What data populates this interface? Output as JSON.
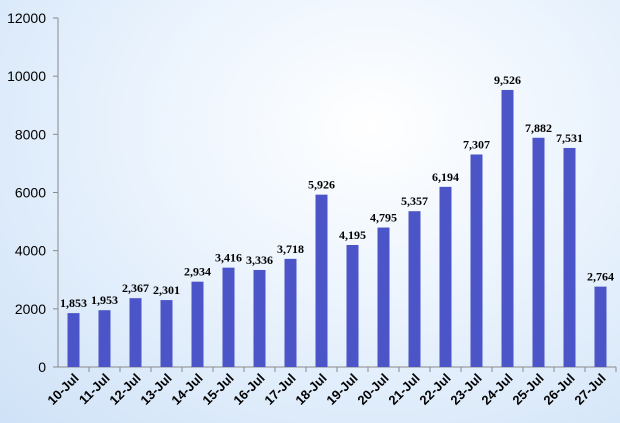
{
  "chart_data": {
    "type": "bar",
    "categories": [
      "10-Jul",
      "11-Jul",
      "12-Jul",
      "13-Jul",
      "14-Jul",
      "15-Jul",
      "16-Jul",
      "17-Jul",
      "18-Jul",
      "19-Jul",
      "20-Jul",
      "21-Jul",
      "22-Jul",
      "23-Jul",
      "24-Jul",
      "25-Jul",
      "26-Jul",
      "27-Jul"
    ],
    "values": [
      1853,
      1953,
      2367,
      2301,
      2934,
      3416,
      3336,
      3718,
      5926,
      4195,
      4795,
      5357,
      6194,
      7307,
      9526,
      7882,
      7531,
      2764
    ],
    "data_labels": [
      "1,853",
      "1,953",
      "2,367",
      "2,301",
      "2,934",
      "3,416",
      "3,336",
      "3,718",
      "5,926",
      "4,195",
      "4,795",
      "5,357",
      "6,194",
      "7,307",
      "9,526",
      "7,882",
      "7,531",
      "2,764"
    ],
    "y_ticks": [
      "0",
      "2000",
      "4000",
      "6000",
      "8000",
      "10000",
      "12000"
    ],
    "ylim": [
      0,
      12000
    ],
    "bar_color": "#4c55c8",
    "grid": false,
    "legend": "none",
    "title": "",
    "xlabel": "",
    "ylabel": ""
  }
}
